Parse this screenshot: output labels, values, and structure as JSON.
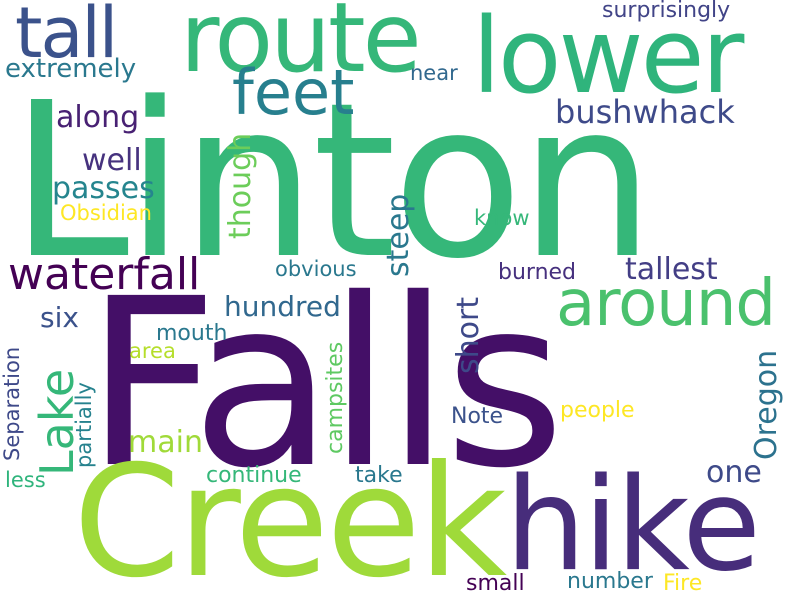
{
  "words": {
    "linton": {
      "text": "Linton",
      "color": "#35b779"
    },
    "falls": {
      "text": "Falls",
      "color": "#440f67"
    },
    "creek": {
      "text": "Creek",
      "color": "#9fda3a"
    },
    "hike": {
      "text": "hike",
      "color": "#472d7b"
    },
    "lower": {
      "text": "lower",
      "color": "#2fb47c"
    },
    "route": {
      "text": "route",
      "color": "#35b779"
    },
    "tall": {
      "text": "tall",
      "color": "#3b528b"
    },
    "feet": {
      "text": "feet",
      "color": "#277f8e"
    },
    "around": {
      "text": "around",
      "color": "#4ac16d"
    },
    "waterfall": {
      "text": "waterfall",
      "color": "#440154"
    },
    "lake": {
      "text": "Lake",
      "color": "#35b779"
    },
    "extremely": {
      "text": "extremely",
      "color": "#2a788e"
    },
    "surprisingly": {
      "text": "surprisingly",
      "color": "#414487"
    },
    "near": {
      "text": "near",
      "color": "#31688e"
    },
    "bushwhack": {
      "text": "bushwhack",
      "color": "#3e4a89"
    },
    "along": {
      "text": "along",
      "color": "#482173"
    },
    "well": {
      "text": "well",
      "color": "#46327e"
    },
    "passes": {
      "text": "passes",
      "color": "#25858e"
    },
    "obsidian": {
      "text": "Obsidian",
      "color": "#fde725"
    },
    "though": {
      "text": "though",
      "color": "#6ccd5a"
    },
    "steep": {
      "text": "steep",
      "color": "#2a788e"
    },
    "know": {
      "text": "know",
      "color": "#35b779"
    },
    "obvious": {
      "text": "obvious",
      "color": "#2a788e"
    },
    "burned": {
      "text": "burned",
      "color": "#46307e"
    },
    "tallest": {
      "text": "tallest",
      "color": "#433e85"
    },
    "short": {
      "text": "short",
      "color": "#3e4989"
    },
    "hundred": {
      "text": "hundred",
      "color": "#31688e"
    },
    "six": {
      "text": "six",
      "color": "#3b528b"
    },
    "mouth": {
      "text": "mouth",
      "color": "#2a788e"
    },
    "area": {
      "text": "area",
      "color": "#b5de2b"
    },
    "campsites": {
      "text": "campsites",
      "color": "#5ec962"
    },
    "oregon": {
      "text": "Oregon",
      "color": "#2c728e"
    },
    "separation": {
      "text": "Separation",
      "color": "#3e4989"
    },
    "partially": {
      "text": "partially",
      "color": "#26828e"
    },
    "main": {
      "text": "main",
      "color": "#a0da39"
    },
    "note": {
      "text": "Note",
      "color": "#3b528b"
    },
    "people": {
      "text": "people",
      "color": "#fde725"
    },
    "one": {
      "text": "one",
      "color": "#3e4a89"
    },
    "less": {
      "text": "less",
      "color": "#2fb47c"
    },
    "continue": {
      "text": "continue",
      "color": "#35b779"
    },
    "take": {
      "text": "take",
      "color": "#2a788e"
    },
    "small": {
      "text": "small",
      "color": "#440154"
    },
    "number": {
      "text": "number",
      "color": "#2a788e"
    },
    "fire": {
      "text": "Fire",
      "color": "#fde725"
    }
  }
}
